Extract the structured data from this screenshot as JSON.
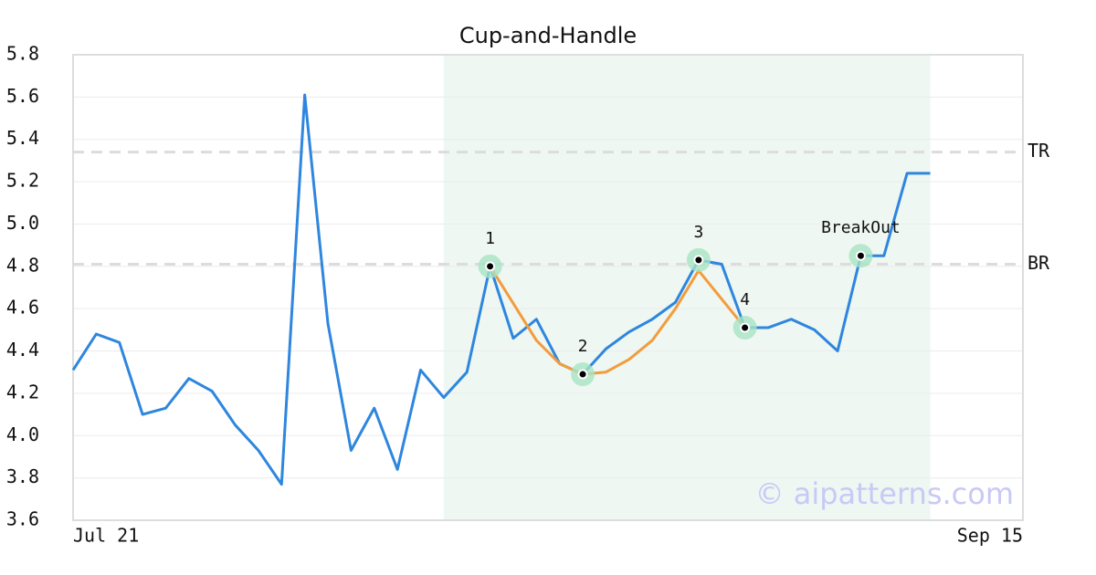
{
  "chart_data": {
    "type": "line",
    "title": "Cup-and-Handle",
    "xlim": [
      0,
      41
    ],
    "xticks": [
      {
        "value": 0,
        "label": "Jul 21"
      },
      {
        "value": 41,
        "label": "Sep 15"
      }
    ],
    "ylim": [
      3.6,
      5.8
    ],
    "yticks": [
      3.6,
      3.8,
      {
        "value": 4,
        "label": "4.0"
      },
      4.2,
      4.4,
      4.6,
      4.8,
      {
        "value": 5,
        "label": "5.0"
      },
      5.2,
      5.4,
      5.6,
      5.8
    ],
    "grid": true,
    "series": [
      {
        "color": "#2e86de",
        "x": [
          0,
          1,
          2,
          3,
          4,
          5,
          6,
          7,
          8,
          9,
          10,
          11,
          12,
          13,
          14,
          15,
          16,
          17,
          18,
          19,
          20,
          21,
          22,
          23,
          24,
          25,
          26,
          27,
          28,
          29,
          30,
          31,
          32,
          33,
          34,
          35,
          36,
          37
        ],
        "values": [
          4.31,
          4.48,
          4.44,
          4.1,
          4.13,
          4.27,
          4.21,
          4.05,
          3.93,
          3.77,
          5.61,
          4.53,
          3.93,
          4.13,
          3.84,
          4.31,
          4.18,
          4.3,
          4.8,
          4.46,
          4.55,
          4.34,
          4.29,
          4.41,
          4.49,
          4.55,
          4.63,
          4.83,
          4.81,
          4.51,
          4.51,
          4.55,
          4.5,
          4.4,
          4.85,
          4.85,
          5.24,
          5.24
        ]
      },
      {
        "color": "#f39c3d",
        "x": [
          18,
          20,
          21,
          22,
          23,
          24,
          25,
          26,
          27,
          29
        ],
        "values": [
          4.8,
          4.45,
          4.34,
          4.29,
          4.3,
          4.36,
          4.45,
          4.6,
          4.78,
          4.51
        ]
      }
    ],
    "hlines": [
      {
        "label": "TR",
        "value": 5.34
      },
      {
        "label": "BR",
        "value": 4.81
      }
    ],
    "shaded": {
      "x": [
        16,
        37
      ],
      "color": "#eef7f2"
    },
    "points": [
      {
        "label": "1",
        "x": 18,
        "y": 4.8
      },
      {
        "label": "2",
        "x": 22,
        "y": 4.29
      },
      {
        "label": "3",
        "x": 27,
        "y": 4.83
      },
      {
        "label": "4",
        "x": 29,
        "y": 4.51
      },
      {
        "label": "BreakOut",
        "x": 34,
        "y": 4.85
      }
    ],
    "watermark": "© aipatterns.com"
  }
}
